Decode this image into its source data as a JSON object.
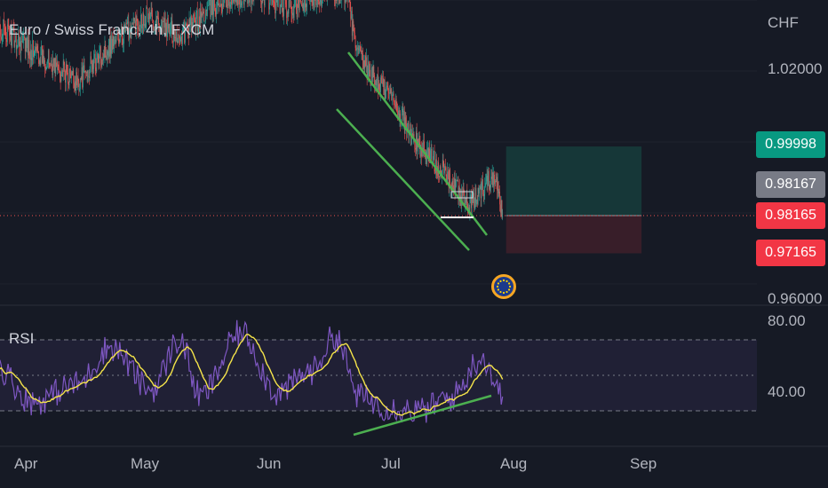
{
  "header": {
    "title": "Euro / Swiss Franc, 4h, FXCM",
    "currency": "CHF"
  },
  "price_axis": {
    "ticks": [
      "1.02000",
      "0.96000"
    ]
  },
  "price_badges": {
    "target": "0.99998",
    "current": "0.98167",
    "last": "0.98165",
    "stop": "0.97165"
  },
  "rsi_axis": {
    "label": "RSI",
    "ticks": [
      "80.00",
      "40.00"
    ]
  },
  "time_axis": {
    "labels": [
      "Apr",
      "May",
      "Jun",
      "Jul",
      "Aug",
      "Sep"
    ]
  },
  "colors": {
    "background": "#161a25",
    "up": "#26a69a",
    "down": "#ef5350",
    "channel": "#4caf50",
    "rsi_line": "#7e57c2",
    "rsi_ma": "#f5e44a",
    "profit_zone": "#163b3b",
    "loss_zone": "#3c1f2a",
    "target_badge": "#089981",
    "current_badge": "#787b86",
    "last_badge": "#f23645"
  },
  "chart_data": [
    {
      "type": "candlestick",
      "title": "Euro / Swiss Franc, 4h, FXCM",
      "ylabel": "CHF",
      "x_labels": [
        "Apr",
        "May",
        "Jun",
        "Jul",
        "Aug",
        "Sep"
      ],
      "ylim": [
        0.956,
        1.043
      ],
      "key_path_close": [
        {
          "x": "Mar 25",
          "y": 1.032
        },
        {
          "x": "Apr 5",
          "y": 1.024
        },
        {
          "x": "Apr 14",
          "y": 1.017
        },
        {
          "x": "Apr 22",
          "y": 1.027
        },
        {
          "x": "May 1",
          "y": 1.035
        },
        {
          "x": "May 9",
          "y": 1.029
        },
        {
          "x": "May 18",
          "y": 1.038
        },
        {
          "x": "May 28",
          "y": 1.041
        },
        {
          "x": "Jun 5",
          "y": 1.036
        },
        {
          "x": "Jun 12",
          "y": 1.04
        },
        {
          "x": "Jun 19",
          "y": 1.041
        },
        {
          "x": "Jun 21",
          "y": 1.026
        },
        {
          "x": "Jun 24",
          "y": 1.02
        },
        {
          "x": "Jun 30",
          "y": 1.013
        },
        {
          "x": "Jul 5",
          "y": 1.002
        },
        {
          "x": "Jul 12",
          "y": 0.994
        },
        {
          "x": "Jul 19",
          "y": 0.984
        },
        {
          "x": "Jul 22",
          "y": 0.989
        },
        {
          "x": "Jul 25",
          "y": 0.993
        },
        {
          "x": "Jul 27",
          "y": 0.982
        }
      ],
      "levels": {
        "target": 0.99998,
        "current": 0.98167,
        "last": 0.98165,
        "stop": 0.97165
      },
      "annotations": [
        "descending channel",
        "long position: entry 0.98165, target 0.99998, stop 0.97165"
      ]
    },
    {
      "type": "line",
      "title": "RSI",
      "ylim": [
        0,
        100
      ],
      "reference_lines": [
        70,
        50,
        30
      ],
      "y_tick_labels": [
        "80.00",
        "40.00"
      ],
      "series": [
        {
          "name": "RSI",
          "key_points": [
            {
              "x": "Mar 25",
              "y": 55
            },
            {
              "x": "Apr 3",
              "y": 35
            },
            {
              "x": "Apr 14",
              "y": 45
            },
            {
              "x": "Apr 22",
              "y": 66
            },
            {
              "x": "May 2",
              "y": 42
            },
            {
              "x": "May 9",
              "y": 70
            },
            {
              "x": "May 14",
              "y": 38
            },
            {
              "x": "May 24",
              "y": 74
            },
            {
              "x": "Jun 2",
              "y": 40
            },
            {
              "x": "Jun 10",
              "y": 52
            },
            {
              "x": "Jun 16",
              "y": 72
            },
            {
              "x": "Jun 22",
              "y": 38
            },
            {
              "x": "Jun 29",
              "y": 32
            },
            {
              "x": "Jul 7",
              "y": 30
            },
            {
              "x": "Jul 14",
              "y": 37
            },
            {
              "x": "Jul 22",
              "y": 60
            },
            {
              "x": "Jul 27",
              "y": 38
            }
          ]
        }
      ],
      "annotations": [
        "rising trendline on RSI lows (bullish divergence)"
      ]
    }
  ]
}
